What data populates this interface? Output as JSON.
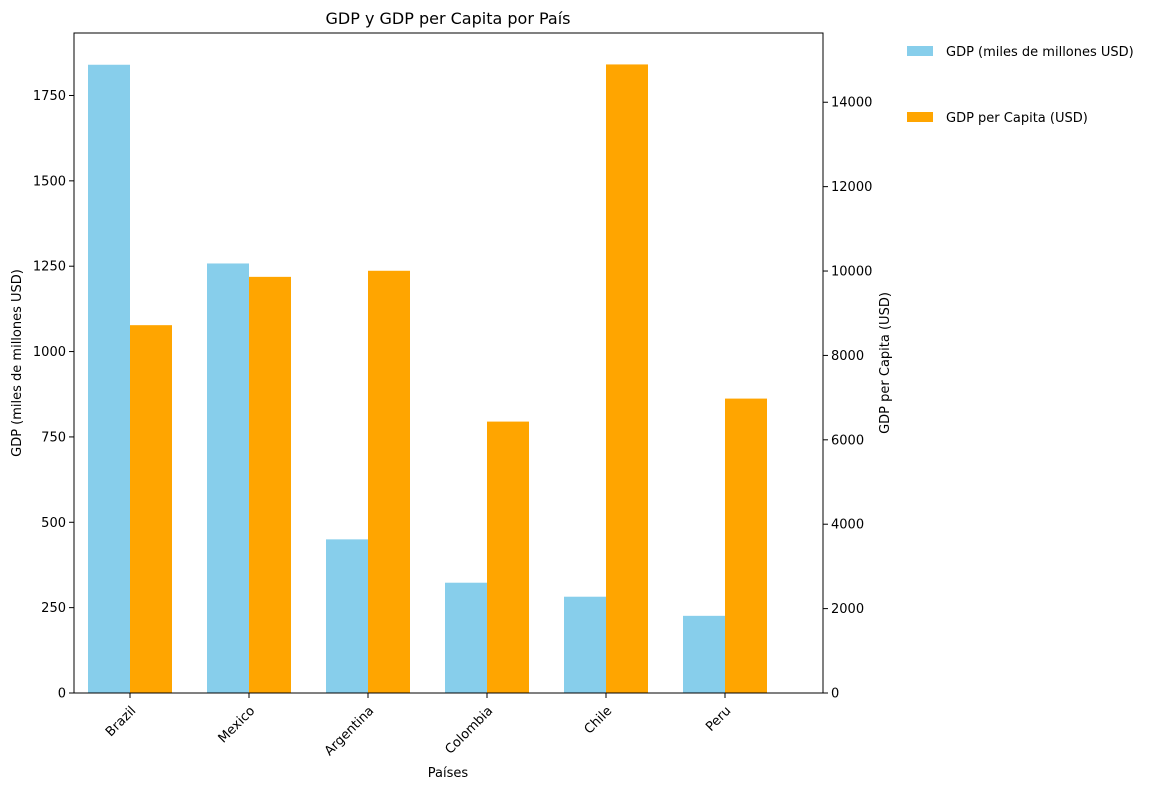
{
  "chart_data": {
    "type": "bar",
    "title": "GDP y GDP per Capita por País",
    "xlabel": "Países",
    "ylabel_left": "GDP (miles de millones USD)",
    "ylabel_right": "GDP per Capita (USD)",
    "categories": [
      "Brazil",
      "Mexico",
      "Argentina",
      "Colombia",
      "Chile",
      "Peru"
    ],
    "series": [
      {
        "name": "GDP (miles de millones USD)",
        "axis": "left",
        "color": "#87CEEB",
        "values": [
          1840,
          1258,
          450,
          323,
          282,
          226
        ]
      },
      {
        "name": "GDP per Capita (USD)",
        "axis": "right",
        "color": "#FFA500",
        "values": [
          8717,
          9862,
          10006,
          6432,
          14896,
          6977
        ]
      }
    ],
    "ylim_left": [
      0,
      1933
    ],
    "ylim_right": [
      0,
      15641
    ],
    "yticks_left": [
      0,
      250,
      500,
      750,
      1000,
      1250,
      1500,
      1750
    ],
    "yticks_right": [
      0,
      2000,
      4000,
      6000,
      8000,
      10000,
      12000,
      14000
    ],
    "grid": false,
    "legend_position": "outside-top-right",
    "xtick_rotation": -45
  }
}
